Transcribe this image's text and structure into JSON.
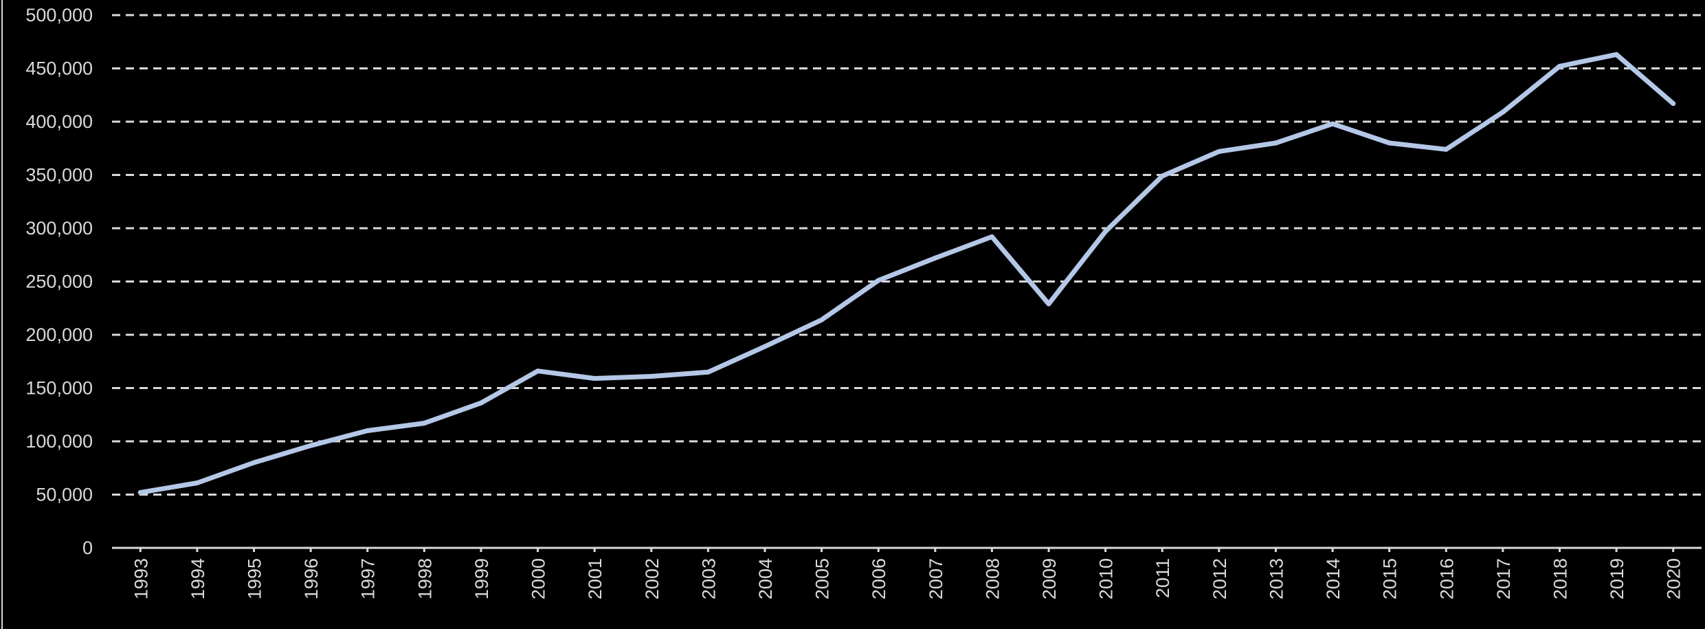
{
  "chart_data": {
    "type": "line",
    "title": "",
    "xlabel": "",
    "ylabel": "",
    "categories": [
      "1993",
      "1994",
      "1995",
      "1996",
      "1997",
      "1998",
      "1999",
      "2000",
      "2001",
      "2002",
      "2003",
      "2004",
      "2005",
      "2006",
      "2007",
      "2008",
      "2009",
      "2010",
      "2011",
      "2012",
      "2013",
      "2014",
      "2015",
      "2016",
      "2017",
      "2018",
      "2019",
      "2020"
    ],
    "series": [
      {
        "values": [
          52000,
          61000,
          80000,
          96000,
          110000,
          117000,
          136000,
          166000,
          159000,
          161000,
          165000,
          189000,
          214000,
          251000,
          272000,
          292000,
          229000,
          297000,
          349000,
          372000,
          380000,
          398000,
          380000,
          374000,
          409000,
          452000,
          463000,
          417000
        ],
        "color": "#b4c7e7"
      }
    ],
    "y_ticks": [
      "0",
      "50,000",
      "100,000",
      "150,000",
      "200,000",
      "250,000",
      "300,000",
      "350,000",
      "400,000",
      "450,000",
      "500,000"
    ],
    "ylim": [
      0,
      500000
    ],
    "grid": true,
    "grid_color": "#d9d9d9",
    "background": "#000000",
    "legend": "none"
  }
}
